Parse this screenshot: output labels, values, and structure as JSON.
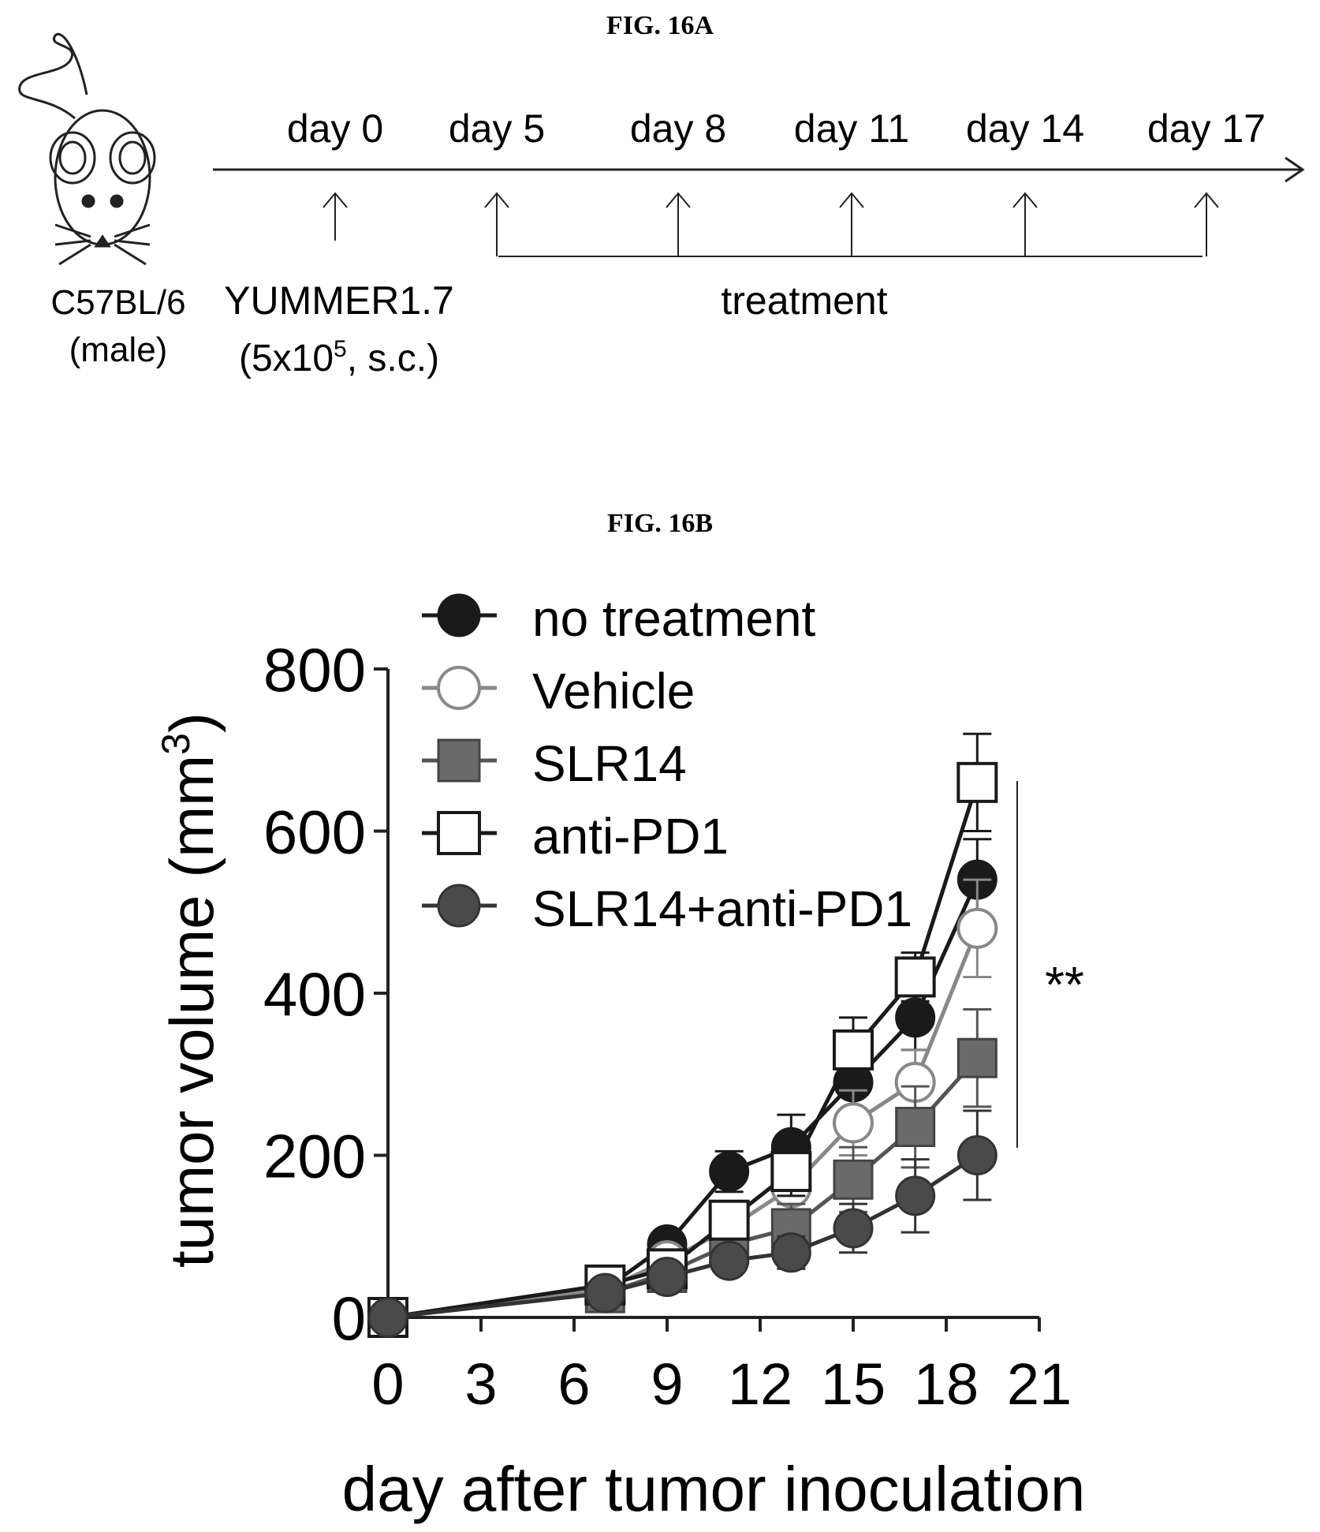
{
  "fig_a": {
    "title": "FIG. 16A",
    "mouse_strain": "C57BL/6",
    "mouse_sex": "(male)",
    "cell_line": "YUMMER1.7",
    "cell_dose_prefix": "(5x10",
    "cell_dose_exp": "5",
    "cell_dose_suffix": ", s.c.)",
    "treatment_label": "treatment",
    "days": [
      "day 0",
      "day 5",
      "day 8",
      "day 11",
      "day 14",
      "day 17"
    ],
    "icon": "mouse-icon"
  },
  "fig_b": {
    "title": "FIG. 16B",
    "significance": "**"
  },
  "chart_data": {
    "type": "line",
    "title": "",
    "xlabel": "day after tumor inoculation",
    "ylabel": "tumor volume (mm",
    "ylabel_sup": "3",
    "ylabel_close": ")",
    "xlim": [
      0,
      21
    ],
    "ylim": [
      0,
      800
    ],
    "xticks": [
      0,
      3,
      6,
      9,
      12,
      15,
      18,
      21
    ],
    "yticks": [
      0,
      200,
      400,
      600,
      800
    ],
    "legend_position": "top-left",
    "series": [
      {
        "name": "no treatment",
        "marker": "filled-circle",
        "color": "#1a1a1a",
        "x": [
          0,
          7,
          9,
          11,
          13,
          15,
          17,
          19
        ],
        "y": [
          0,
          35,
          90,
          180,
          210,
          290,
          370,
          540
        ],
        "err": [
          0,
          8,
          15,
          25,
          40,
          40,
          40,
          50
        ]
      },
      {
        "name": "Vehicle",
        "marker": "open-circle",
        "color": "#888888",
        "x": [
          0,
          7,
          9,
          11,
          13,
          15,
          17,
          19
        ],
        "y": [
          0,
          35,
          70,
          110,
          160,
          240,
          290,
          480
        ],
        "err": [
          0,
          8,
          15,
          20,
          30,
          40,
          40,
          60
        ]
      },
      {
        "name": "SLR14",
        "marker": "hatched-square",
        "color": "#555555",
        "x": [
          0,
          7,
          9,
          11,
          13,
          15,
          17,
          19
        ],
        "y": [
          0,
          30,
          55,
          90,
          110,
          170,
          235,
          320
        ],
        "err": [
          0,
          8,
          12,
          20,
          30,
          40,
          50,
          60
        ]
      },
      {
        "name": "anti-PD1",
        "marker": "open-square",
        "color": "#1a1a1a",
        "x": [
          0,
          7,
          9,
          11,
          13,
          15,
          17,
          19
        ],
        "y": [
          0,
          40,
          60,
          120,
          180,
          330,
          420,
          660
        ],
        "err": [
          0,
          8,
          12,
          20,
          30,
          40,
          30,
          60
        ]
      },
      {
        "name": "SLR14+anti-PD1",
        "marker": "hatched-circle",
        "color": "#333333",
        "x": [
          0,
          7,
          9,
          11,
          13,
          15,
          17,
          19
        ],
        "y": [
          0,
          30,
          50,
          70,
          80,
          110,
          150,
          200
        ],
        "err": [
          0,
          8,
          10,
          15,
          20,
          30,
          45,
          55
        ]
      }
    ]
  }
}
